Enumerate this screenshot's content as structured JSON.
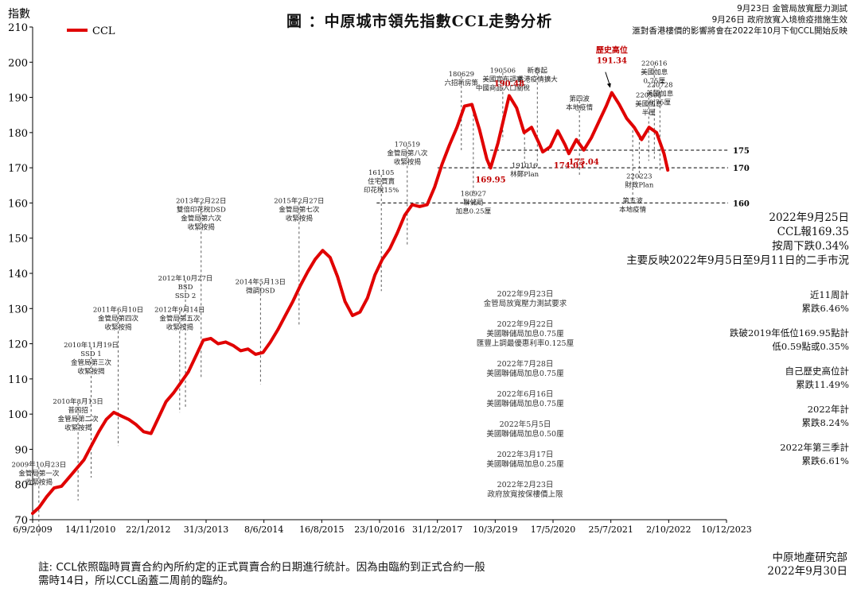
{
  "title": "圖 ：中原城市領先指數CCL走勢分析",
  "top_notes": [
    "9月23日 金管局放寬壓力測試",
    "9月26日 政府放寬入境檢疫措施生效",
    "滙對香港樓價的影響將會在2022年10月下旬CCL開始反映"
  ],
  "right_panel": {
    "main": [
      "2022年9月25日",
      "CCL報169.35",
      "按周下跌0.34%",
      "主要反映2022年9月5日至9月11日的二手市況"
    ],
    "stats": [
      [
        "近11周計",
        "累跌6.46%"
      ],
      [
        "跌破2019年低位169.95點計",
        "低0.59點或0.35%"
      ],
      [
        "自己歷史高位計",
        "累跌11.49%"
      ],
      [
        "2022年計",
        "累跌8.24%"
      ],
      [
        "2022年第三季計",
        "累跌6.61%"
      ]
    ]
  },
  "footnote": [
    "註: CCL依照臨時買賣合約內所約定的正式買賣合約日期進行統計。因為由臨約到正式合約一般",
    "需時14日，所以CCL函蓋二周前的臨約。"
  ],
  "source": [
    "中原地產研究部",
    "2022年9月30日"
  ],
  "chart_data": {
    "type": "line",
    "title": "圖 ：中原城市領先指數CCL走勢分析",
    "ylabel": "指數",
    "xlabel": "",
    "ylim": [
      70,
      210
    ],
    "yticks": [
      70,
      80,
      90,
      100,
      110,
      120,
      130,
      140,
      150,
      160,
      170,
      180,
      190,
      200,
      210
    ],
    "xlim": [
      "2009-09-06",
      "2023-12-10"
    ],
    "xticks": [
      "6/9/2009",
      "14/11/2010",
      "22/1/2012",
      "31/3/2013",
      "8/6/2014",
      "16/8/2015",
      "23/10/2016",
      "31/12/2017",
      "10/3/2019",
      "17/5/2020",
      "25/7/2021",
      "2/10/2022",
      "10/12/2023"
    ],
    "legend": {
      "label": "CCL",
      "position": "top-left"
    },
    "series": [
      {
        "name": "CCL",
        "color": "#e00000",
        "points": [
          [
            "2009-09-06",
            71.8
          ],
          [
            "2009-10-25",
            73.5
          ],
          [
            "2009-12-20",
            76.5
          ],
          [
            "2010-02-14",
            79.0
          ],
          [
            "2010-04-11",
            79.5
          ],
          [
            "2010-06-06",
            82.0
          ],
          [
            "2010-08-01",
            84.5
          ],
          [
            "2010-09-26",
            87.0
          ],
          [
            "2010-11-21",
            91.0
          ],
          [
            "2011-01-16",
            95.0
          ],
          [
            "2011-03-13",
            98.5
          ],
          [
            "2011-05-08",
            100.5
          ],
          [
            "2011-07-03",
            99.5
          ],
          [
            "2011-08-28",
            98.5
          ],
          [
            "2011-10-23",
            97.0
          ],
          [
            "2011-12-18",
            95.0
          ],
          [
            "2012-02-12",
            94.5
          ],
          [
            "2012-04-08",
            99.0
          ],
          [
            "2012-06-03",
            103.5
          ],
          [
            "2012-07-29",
            106.0
          ],
          [
            "2012-09-23",
            109.0
          ],
          [
            "2012-11-18",
            112.0
          ],
          [
            "2013-01-13",
            116.5
          ],
          [
            "2013-03-10",
            121.0
          ],
          [
            "2013-05-05",
            121.5
          ],
          [
            "2013-06-30",
            120.0
          ],
          [
            "2013-08-25",
            120.5
          ],
          [
            "2013-10-20",
            119.5
          ],
          [
            "2013-12-15",
            118.0
          ],
          [
            "2014-02-09",
            118.5
          ],
          [
            "2014-04-06",
            117.0
          ],
          [
            "2014-06-01",
            117.5
          ],
          [
            "2014-07-27",
            120.5
          ],
          [
            "2014-09-21",
            124.0
          ],
          [
            "2014-11-16",
            128.0
          ],
          [
            "2015-01-11",
            132.0
          ],
          [
            "2015-03-08",
            136.5
          ],
          [
            "2015-05-03",
            140.5
          ],
          [
            "2015-06-28",
            144.0
          ],
          [
            "2015-08-23",
            146.5
          ],
          [
            "2015-10-18",
            144.5
          ],
          [
            "2015-12-13",
            139.0
          ],
          [
            "2016-02-07",
            132.0
          ],
          [
            "2016-04-03",
            128.0
          ],
          [
            "2016-05-29",
            129.0
          ],
          [
            "2016-07-24",
            133.0
          ],
          [
            "2016-09-18",
            139.5
          ],
          [
            "2016-11-13",
            144.0
          ],
          [
            "2017-01-08",
            147.0
          ],
          [
            "2017-03-05",
            151.5
          ],
          [
            "2017-04-30",
            156.5
          ],
          [
            "2017-06-25",
            159.5
          ],
          [
            "2017-08-20",
            159.0
          ],
          [
            "2017-10-15",
            159.5
          ],
          [
            "2017-12-10",
            164.5
          ],
          [
            "2018-02-04",
            171.0
          ],
          [
            "2018-04-01",
            176.5
          ],
          [
            "2018-05-27",
            181.5
          ],
          [
            "2018-07-22",
            187.5
          ],
          [
            "2018-09-16",
            188.0
          ],
          [
            "2018-11-11",
            181.0
          ],
          [
            "2019-01-06",
            172.5
          ],
          [
            "2019-02-03",
            169.95
          ],
          [
            "2019-03-31",
            177.0
          ],
          [
            "2019-05-26",
            186.0
          ],
          [
            "2019-06-23",
            190.48
          ],
          [
            "2019-08-18",
            187.0
          ],
          [
            "2019-10-13",
            180.0
          ],
          [
            "2019-12-08",
            181.5
          ],
          [
            "2020-02-02",
            177.0
          ],
          [
            "2020-03-01",
            174.5
          ],
          [
            "2020-04-26",
            176.0
          ],
          [
            "2020-06-21",
            180.5
          ],
          [
            "2020-08-16",
            176.5
          ],
          [
            "2020-09-13",
            174.03
          ],
          [
            "2020-11-08",
            178.0
          ],
          [
            "2021-01-03",
            175.04
          ],
          [
            "2021-02-28",
            178.5
          ],
          [
            "2021-04-25",
            183.0
          ],
          [
            "2021-06-20",
            187.5
          ],
          [
            "2021-08-01",
            191.34
          ],
          [
            "2021-09-26",
            188.0
          ],
          [
            "2021-11-21",
            184.0
          ],
          [
            "2022-01-16",
            181.5
          ],
          [
            "2022-03-13",
            178.0
          ],
          [
            "2022-05-08",
            181.5
          ],
          [
            "2022-07-03",
            180.0
          ],
          [
            "2022-08-28",
            174.0
          ],
          [
            "2022-09-25",
            169.35
          ]
        ]
      }
    ],
    "peak_labels": [
      {
        "date": "2019-02-03",
        "value": 169.95,
        "label": "169.95"
      },
      {
        "date": "2019-06-23",
        "value": 190.48,
        "label": "190.48"
      },
      {
        "date": "2020-09-13",
        "value": 174.03,
        "label": "174.03"
      },
      {
        "date": "2021-01-03",
        "value": 175.04,
        "label": "175.04"
      },
      {
        "date": "2021-08-01",
        "value": 191.34,
        "label": "歷史高位\n191.34"
      }
    ],
    "reference_lines": [
      {
        "value": 175,
        "from": "2019-02-01",
        "label": "175"
      },
      {
        "value": 170,
        "from": "2018-01-01",
        "label": "170"
      },
      {
        "value": 160,
        "from": "2016-10-01",
        "label": "160"
      }
    ],
    "annotations": [
      {
        "date": "2009-10-23",
        "value": 74.5,
        "text_y": 85,
        "text": [
          "2009年10月23日",
          "金管局第一次",
          "收緊按揭"
        ]
      },
      {
        "date": "2010-08-13",
        "value": 84.5,
        "text_y": 103,
        "text": [
          "2010年8月13日",
          "普四招",
          "金管局第二次",
          "收緊按揭"
        ]
      },
      {
        "date": "2010-11-19",
        "value": 91.0,
        "text_y": 119,
        "text": [
          "2010年11月19日",
          "SSD 1",
          "金管局第三次",
          "收緊按揭"
        ]
      },
      {
        "date": "2011-06-10",
        "value": 100.0,
        "text_y": 129,
        "text": [
          "2011年6月10日",
          "金管局第四次",
          "收緊按揭"
        ]
      },
      {
        "date": "2012-09-14",
        "value": 109.5,
        "text_y": 129,
        "text": [
          "2012年9月14日",
          "金管局第五次",
          "收緊按揭"
        ]
      },
      {
        "date": "2012-10-27",
        "value": 111.0,
        "text_y": 138,
        "text": [
          "2012年10月27日",
          "BSD",
          "SSD 2"
        ]
      },
      {
        "date": "2013-02-22",
        "value": 119.0,
        "text_y": 160,
        "text": [
          "2013年2月22日",
          "雙倍印花稅DSD",
          "金管局第六次",
          "收緊按揭"
        ]
      },
      {
        "date": "2014-05-13",
        "value": 117.5,
        "text_y": 137,
        "text": [
          "2014年5月13日",
          "微調DSD"
        ]
      },
      {
        "date": "2015-02-27",
        "value": 134.0,
        "text_y": 160,
        "text": [
          "2015年2月27日",
          "金管局第七次",
          "收緊按揭"
        ]
      },
      {
        "date": "2016-11-05",
        "value": 144.0,
        "text_y": 168,
        "text": [
          "161105",
          "住宅買賣",
          "印花稅15%"
        ]
      },
      {
        "date": "2017-05-19",
        "value": 157.0,
        "text_y": 176,
        "text": [
          "170519",
          "金管局第八次",
          "收緊按揭"
        ]
      },
      {
        "date": "2018-06-29",
        "value": 184.0,
        "text_y": 196,
        "text": [
          "180629",
          "六招新房策"
        ]
      },
      {
        "date": "2018-09-27",
        "value": 188.0,
        "text_y": 162,
        "text": [
          "180927",
          "聯儲局",
          "加息0.25厘"
        ],
        "below": true
      },
      {
        "date": "2019-05-06",
        "value": 187.0,
        "text_y": 197,
        "text": [
          "190506",
          "美國宣布調高",
          "中國商品入口關稅"
        ]
      },
      {
        "date": "2019-10-16",
        "value": 180.0,
        "text_y": 170,
        "text": [
          "191016",
          "林鄭Plan"
        ],
        "below": true
      },
      {
        "date": "2020-01-20",
        "value": 179.0,
        "text_y": 197,
        "text": [
          "新春起",
          "香港疫情擴大"
        ]
      },
      {
        "date": "2020-12-01",
        "value": 177.0,
        "text_y": 189,
        "text": [
          "第四波",
          "本地疫情"
        ]
      },
      {
        "date": "2022-01-05",
        "value": 182.0,
        "text_y": 160,
        "text": [
          "第五波",
          "本地疫情"
        ],
        "below": true
      },
      {
        "date": "2022-05-05",
        "value": 181.0,
        "text_y": 190,
        "text": [
          "220505",
          "美國加息",
          "半厘"
        ]
      },
      {
        "date": "2022-06-16",
        "value": 181.0,
        "text_y": 199,
        "text": [
          "220616",
          "美國加息",
          "0.75厘"
        ]
      },
      {
        "date": "2022-07-28",
        "value": 178.0,
        "text_y": 193,
        "text": [
          "220728",
          "美國加息",
          "0.75厘"
        ]
      },
      {
        "date": "2022-02-23",
        "value": 180.0,
        "text_y": 167,
        "text": [
          "220223",
          "財政Plan"
        ],
        "below": true
      }
    ],
    "center_notes": [
      {
        "text": [
          "2022年9月23日",
          "金管局放寬壓力測試要求"
        ]
      },
      {
        "text": [
          "2022年9月22日",
          "美國聯儲局加息0.75厘",
          "匯豐上調最優惠利率0.125厘"
        ]
      },
      {
        "text": [
          "2022年7月28日",
          "美國聯儲局加息0.75厘"
        ]
      },
      {
        "text": [
          "2022年6月16日",
          "美國聯儲局加息0.75厘"
        ]
      },
      {
        "text": [
          "2022年5月5日",
          "美國聯儲局加息0.50厘"
        ]
      },
      {
        "text": [
          "2022年3月17日",
          "美國聯儲局加息0.25厘"
        ]
      },
      {
        "text": [
          "2022年2月23日",
          "政府放寬按保樓價上限"
        ]
      }
    ]
  }
}
